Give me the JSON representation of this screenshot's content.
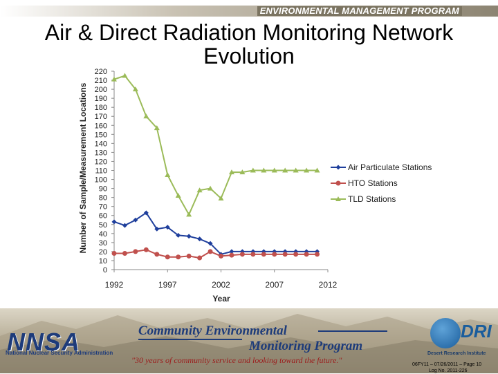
{
  "header": {
    "program": "ENVIRONMENTAL MANAGEMENT PROGRAM",
    "title": "Air & Direct Radiation Monitoring Network Evolution"
  },
  "chart_data": {
    "type": "line",
    "title": "",
    "xlabel": "Year",
    "ylabel": "Number of Sample/Measurement Locations",
    "xlim": [
      1992,
      2012
    ],
    "ylim": [
      0,
      220
    ],
    "x_ticks": [
      1992,
      1997,
      2002,
      2007,
      2012
    ],
    "y_ticks": [
      0,
      10,
      20,
      30,
      40,
      50,
      60,
      70,
      80,
      90,
      100,
      110,
      120,
      130,
      140,
      150,
      160,
      170,
      180,
      190,
      200,
      210,
      220
    ],
    "grid": false,
    "legend_position": "right",
    "series": [
      {
        "name": "Air Particulate Stations",
        "color": "#1f3f9c",
        "marker": "diamond",
        "x": [
          1992,
          1993,
          1994,
          1995,
          1996,
          1997,
          1998,
          1999,
          2000,
          2001,
          2002,
          2003,
          2004,
          2005,
          2006,
          2007,
          2008,
          2009,
          2010,
          2011
        ],
        "y": [
          53,
          49,
          55,
          63,
          45,
          47,
          38,
          37,
          34,
          29,
          17,
          20,
          20,
          20,
          20,
          20,
          20,
          20,
          20,
          20
        ]
      },
      {
        "name": "HTO Stations",
        "color": "#c0504d",
        "marker": "circle",
        "x": [
          1992,
          1993,
          1994,
          1995,
          1996,
          1997,
          1998,
          1999,
          2000,
          2001,
          2002,
          2003,
          2004,
          2005,
          2006,
          2007,
          2008,
          2009,
          2010,
          2011
        ],
        "y": [
          18,
          18,
          20,
          22,
          17,
          14,
          14,
          15,
          13,
          20,
          15,
          16,
          17,
          17,
          17,
          17,
          17,
          17,
          17,
          17
        ]
      },
      {
        "name": "TLD Stations",
        "color": "#9bbb59",
        "marker": "triangle",
        "x": [
          1992,
          1993,
          1994,
          1995,
          1996,
          1997,
          1998,
          1999,
          2000,
          2001,
          2002,
          2003,
          2004,
          2005,
          2006,
          2007,
          2008,
          2009,
          2010,
          2011
        ],
        "y": [
          211,
          215,
          200,
          170,
          157,
          105,
          82,
          61,
          88,
          90,
          79,
          108,
          108,
          110,
          110,
          110,
          110,
          110,
          110,
          110
        ]
      }
    ]
  },
  "footer": {
    "nnsa_logo": "NNSA",
    "nnsa_name": "National Nuclear Security Administration",
    "cemp_line1": "Community Environmental",
    "cemp_line2": "Monitoring Program",
    "tagline": "\"30 years of community service and looking toward the future.\"",
    "dri_logo": "DRI",
    "dri_name": "Desert Research Institute",
    "slide_id": "06FY11 – 07/26/2011 – Page 10",
    "log_no": "Log No. 2011-226"
  }
}
